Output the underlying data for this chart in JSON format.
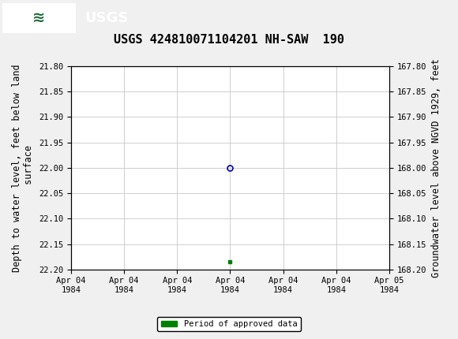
{
  "title": "USGS 424810071104201 NH-SAW  190",
  "header_bg_color": "#1e6b3a",
  "header_text_color": "#ffffff",
  "plot_bg_color": "#ffffff",
  "grid_color": "#c8c8c8",
  "ylabel_left": "Depth to water level, feet below land\n surface",
  "ylabel_right": "Groundwater level above NGVD 1929, feet",
  "ylim_left": [
    21.8,
    22.2
  ],
  "ylim_right_top": 168.2,
  "ylim_right_bottom": 167.8,
  "yticks_left": [
    21.8,
    21.85,
    21.9,
    21.95,
    22.0,
    22.05,
    22.1,
    22.15,
    22.2
  ],
  "yticks_right": [
    168.2,
    168.15,
    168.1,
    168.05,
    168.0,
    167.95,
    167.9,
    167.85,
    167.8
  ],
  "data_point_x": 3.0,
  "data_point_y": 22.0,
  "data_point_color": "#0000bb",
  "data_point_markersize": 5,
  "approved_x": 3.0,
  "approved_y": 22.185,
  "approved_color": "#008000",
  "approved_markersize": 3.5,
  "legend_label": "Period of approved data",
  "legend_color": "#008000",
  "font_family": "monospace",
  "title_fontsize": 11,
  "axis_label_fontsize": 8.5,
  "tick_fontsize": 7.5,
  "num_xticks": 7,
  "xmin": 0,
  "xmax": 6,
  "xtick_labels": [
    "Apr 04\n1984",
    "Apr 04\n1984",
    "Apr 04\n1984",
    "Apr 04\n1984",
    "Apr 04\n1984",
    "Apr 04\n1984",
    "Apr 05\n1984"
  ],
  "fig_width": 5.8,
  "fig_height": 4.3,
  "fig_dpi": 100
}
